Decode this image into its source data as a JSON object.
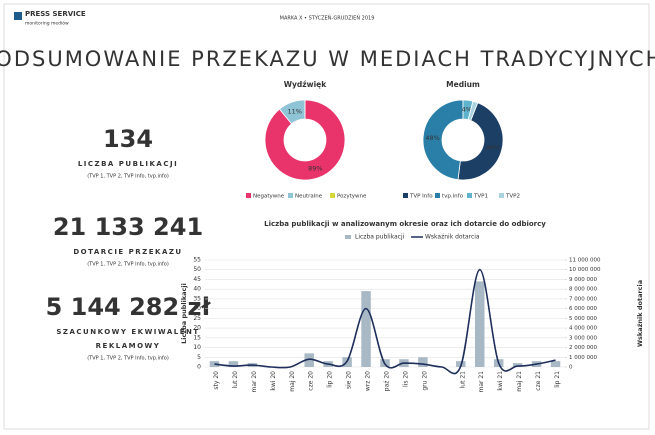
{
  "header": {
    "logo": "PRESS SERVICE",
    "logo_sub": "monitoring mediów",
    "caption": "MARKA X • STYCZEŃ-GRUDZIEŃ 2019",
    "title": "PODSUMOWANIE PRZEKAZU W MEDIACH TRADYCYJNYCH"
  },
  "kpis": [
    {
      "value": "134",
      "label_lines": [
        "LICZBA PUBLIKACJI"
      ],
      "note": "(TVP 1, TVP 2, TVP Info, tvp.info)"
    },
    {
      "value": "21 133 241",
      "label_lines": [
        "DOTARCIE PRZEKAZU"
      ],
      "note": "(TVP 1, TVP 2, TVP Info, tvp.info)"
    },
    {
      "value": "5 144 282 zł",
      "label_lines": [
        "SZACUNKOWY EKWIWALENT",
        "REKLAMOWY"
      ],
      "note": "(TVP 1, TVP 2, TVP Info, tvp.info)"
    }
  ],
  "chart_data": [
    {
      "type": "donut",
      "title": "Wydźwięk",
      "categories": [
        "Negatywne",
        "Neutralne",
        "Pozytywne"
      ],
      "values": [
        89,
        11,
        0
      ],
      "value_labels": [
        "89%",
        "11%",
        null
      ],
      "colors": [
        "#e8336b",
        "#8fc3d6",
        "#d4d936"
      ]
    },
    {
      "type": "donut",
      "title": "Medium",
      "categories": [
        "TVP Info",
        "tvp.info",
        "TVP1",
        "TVP2"
      ],
      "values": [
        46,
        48,
        4,
        2
      ],
      "value_labels": [
        "46%",
        "48%",
        "4%",
        null
      ],
      "colors": [
        "#1c3f66",
        "#2a7fa8",
        "#5fb3cc",
        "#a9d3e0"
      ]
    },
    {
      "type": "combo",
      "title": "Liczba publikacji  w analizowanym okresie oraz ich dotarcie do odbiorcy",
      "categories": [
        "sty 20",
        "lut 20",
        "mar 20",
        "kwi 20",
        "maj 20",
        "cze 20",
        "lip 20",
        "sie 20",
        "wrz 20",
        "paź 20",
        "lis 20",
        "gru 20",
        null,
        "lut 21",
        "mar 21",
        "kwi 21",
        "maj 21",
        "cze 21",
        "lip 21"
      ],
      "y_label": "Liczba publikacji",
      "y2_label": "Wskaźnik dotarcia",
      "series": [
        {
          "name": "Liczba publikacji",
          "kind": "bar",
          "color": "#a8b8c4",
          "values": [
            3,
            3,
            2,
            0,
            0,
            7,
            3,
            5,
            39,
            4,
            4,
            5,
            0,
            3,
            44,
            4,
            2,
            3,
            3
          ]
        },
        {
          "name": "Wskaźnik dotarcia",
          "kind": "line",
          "axis": "y2",
          "color": "#1f2f5c",
          "values": [
            300000,
            100000,
            200000,
            0,
            0,
            800000,
            300000,
            600000,
            6000000,
            300000,
            400000,
            300000,
            0,
            100000,
            10000000,
            400000,
            100000,
            300000,
            700000
          ]
        }
      ],
      "ylim": [
        0,
        55
      ],
      "yticks": [
        0,
        5,
        10,
        15,
        20,
        25,
        30,
        35,
        40,
        45,
        50,
        55
      ],
      "y2lim": [
        0,
        11000000
      ],
      "y2ticks": [
        0,
        {
          "value": 1000000,
          "label": "1 000 000"
        },
        {
          "value": 2000000,
          "label": "2 000 000"
        },
        {
          "value": 3000000,
          "label": "3 000 000"
        },
        {
          "value": 4000000,
          "label": "4 000 000"
        },
        {
          "value": 5000000,
          "label": "5 000 000"
        },
        {
          "value": 6000000,
          "label": "6 000 000"
        },
        {
          "value": 7000000,
          "label": "7 000 000"
        },
        {
          "value": 8000000,
          "label": "8 000 000"
        },
        {
          "value": 9000000,
          "label": "9 000 000"
        },
        {
          "value": 10000000,
          "label": "10 000 000"
        },
        {
          "value": 11000000,
          "label": "11 000 000"
        }
      ],
      "grid": true
    }
  ]
}
